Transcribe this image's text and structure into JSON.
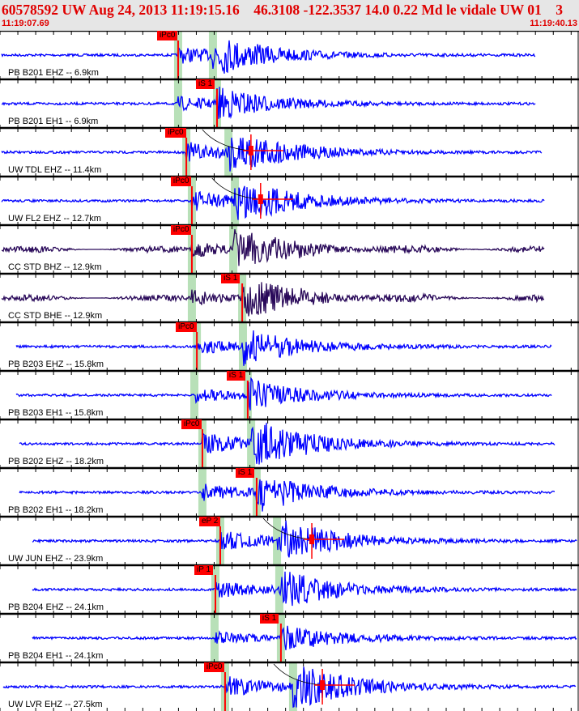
{
  "header": {
    "title": "60578592 UW Aug 24, 2013 11:19:15.16    46.3108 -122.3537 14.0 0.22 Md le vidale UW 01    3",
    "start_time": "11:19:07.69",
    "end_time": "11:19:40.13"
  },
  "window_seconds": 32.44,
  "colors": {
    "trace": "#0000ff",
    "broadband": "#2a0a5a",
    "pick": "#ff0000",
    "band": "#b8e0b8"
  },
  "traces": [
    {
      "label": "PB B201 EHZ -- 6.9km",
      "pick": "iPc0",
      "pick_type": "P",
      "p": 9.98,
      "s": 11.93,
      "start": 0.1,
      "end": 30.0,
      "amp": 1.0,
      "bb": false
    },
    {
      "label": "PB B201 EH1 -- 6.9km",
      "pick": "iS 1",
      "pick_type": "S",
      "p": 9.98,
      "s": 12.16,
      "start": 0.1,
      "end": 30.0,
      "amp": 0.8,
      "bb": false
    },
    {
      "label": "UW TDL EHZ -- 11.4km",
      "pick": "iPc0",
      "pick_type": "P",
      "p": 10.44,
      "s": 12.8,
      "start": 0.1,
      "end": 30.4,
      "amp": 1.2,
      "bb": false,
      "coda": 14.06
    },
    {
      "label": "UW FL2 EHZ -- 12.7km",
      "pick": "iPc0",
      "pick_type": "P",
      "p": 10.75,
      "s": 13.16,
      "start": 0.1,
      "end": 30.5,
      "amp": 1.2,
      "bb": false,
      "coda": 14.6
    },
    {
      "label": "CC STD BHZ -- 12.9km",
      "pick": "iPc0",
      "pick_type": "P",
      "p": 10.75,
      "s": 13.07,
      "start": 0.1,
      "end": 30.5,
      "amp": 1.0,
      "bb": true
    },
    {
      "label": "CC STD BHE -- 12.9km",
      "pick": "iS 1",
      "pick_type": "S",
      "p": 10.75,
      "s": 13.57,
      "start": 0.1,
      "end": 30.5,
      "amp": 1.0,
      "bb": true
    },
    {
      "label": "PB B203 EHZ -- 15.8km",
      "pick": "iPc0",
      "pick_type": "P",
      "p": 11.03,
      "s": 13.61,
      "start": 0.9,
      "end": 30.9,
      "amp": 0.9,
      "bb": false
    },
    {
      "label": "PB B203 EH1 -- 15.8km",
      "pick": "iS 1",
      "pick_type": "S",
      "p": 10.89,
      "s": 13.88,
      "start": 0.9,
      "end": 30.9,
      "amp": 0.8,
      "bb": false
    },
    {
      "label": "PB B202 EHZ -- 18.2km",
      "pick": "iPc0",
      "pick_type": "P",
      "p": 11.34,
      "s": 14.07,
      "start": 1.1,
      "end": 31.1,
      "amp": 1.3,
      "bb": false
    },
    {
      "label": "PB B202 EH1 -- 18.2km",
      "pick": "iS 1",
      "pick_type": "S",
      "p": 11.34,
      "s": 14.38,
      "start": 1.1,
      "end": 31.1,
      "amp": 1.0,
      "bb": false
    },
    {
      "label": "UW JUN EHZ -- 23.9km",
      "pick": "eP 2",
      "pick_type": "P",
      "p": 12.34,
      "s": 15.52,
      "start": 1.8,
      "end": 32.3,
      "amp": 1.2,
      "bb": false,
      "coda": 17.47
    },
    {
      "label": "PB B204 EHZ -- 24.1km",
      "pick": "iP 1",
      "pick_type": "P",
      "p": 12.07,
      "s": 15.65,
      "start": 1.8,
      "end": 32.3,
      "amp": 1.0,
      "bb": false
    },
    {
      "label": "PB B204 EH1 -- 24.1km",
      "pick": "iS 1",
      "pick_type": "S",
      "p": 12.02,
      "s": 15.74,
      "start": 1.8,
      "end": 32.3,
      "amp": 0.7,
      "bb": false
    },
    {
      "label": "UW LVR EHZ -- 27.5km",
      "pick": "iPc0",
      "pick_type": "P",
      "p": 12.61,
      "s": 16.42,
      "start": 0.2,
      "end": 32.3,
      "amp": 1.3,
      "bb": false,
      "coda": 18.06
    }
  ]
}
